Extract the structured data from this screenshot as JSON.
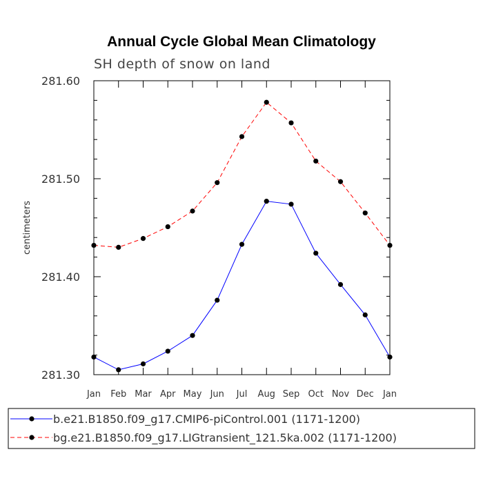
{
  "chart_data": {
    "type": "line",
    "title": "Annual Cycle Global Mean Climatology",
    "subtitle": "SH depth of snow on land",
    "xlabel": "",
    "ylabel": "centimeters",
    "categories": [
      "Jan",
      "Feb",
      "Mar",
      "Apr",
      "May",
      "Jun",
      "Jul",
      "Aug",
      "Sep",
      "Oct",
      "Nov",
      "Dec",
      "Jan"
    ],
    "ylim": [
      281.3,
      281.6
    ],
    "yticks": [
      "281.30",
      "281.40",
      "281.50",
      "281.60"
    ],
    "ytick_values": [
      281.3,
      281.4,
      281.5,
      281.6
    ],
    "grid": false,
    "legend_position": "bottom",
    "series": [
      {
        "name": "b.e21.B1850.f09_g17.CMIP6-piControl.001 (1171-1200)",
        "color": "#0000ff",
        "dash": "solid",
        "marker": "circle",
        "values": [
          281.318,
          281.305,
          281.311,
          281.324,
          281.34,
          281.376,
          281.433,
          281.477,
          281.474,
          281.424,
          281.392,
          281.361,
          281.318
        ]
      },
      {
        "name": "bg.e21.B1850.f09_g17.LIGtransient_121.5ka.002 (1171-1200)",
        "color": "#ff0000",
        "dash": "dashed",
        "marker": "circle",
        "values": [
          281.432,
          281.43,
          281.439,
          281.451,
          281.467,
          281.496,
          281.543,
          281.578,
          281.557,
          281.518,
          281.497,
          281.465,
          281.432
        ]
      }
    ]
  }
}
